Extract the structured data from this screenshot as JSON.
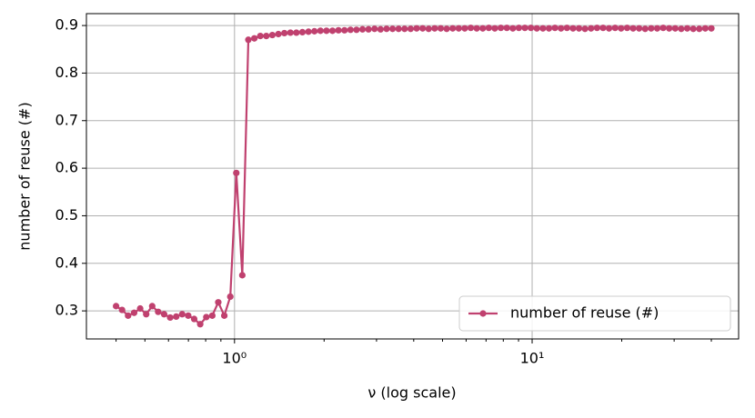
{
  "chart_data": {
    "type": "line",
    "xlabel": "ν (log scale)",
    "ylabel": "number of reuse (#)",
    "xscale": "log",
    "grid": true,
    "legend": "lower right",
    "xlim": [
      0.318,
      49.4
    ],
    "ylim": [
      0.241,
      0.925
    ],
    "xticks": [
      {
        "value": 1,
        "label": "10⁰"
      },
      {
        "value": 10,
        "label": "10¹"
      }
    ],
    "xminorticks": [
      0.4,
      0.5,
      0.6,
      0.7,
      0.8,
      0.9,
      2,
      3,
      4,
      5,
      6,
      7,
      8,
      9,
      20,
      30,
      40
    ],
    "yticks": [
      0.3,
      0.4,
      0.5,
      0.6,
      0.7,
      0.8,
      0.9
    ],
    "x": [
      0.4,
      0.419,
      0.439,
      0.46,
      0.482,
      0.505,
      0.529,
      0.554,
      0.58,
      0.608,
      0.637,
      0.667,
      0.699,
      0.732,
      0.767,
      0.804,
      0.842,
      0.882,
      0.924,
      0.968,
      1.014,
      1.062,
      1.113,
      1.166,
      1.221,
      1.279,
      1.34,
      1.404,
      1.471,
      1.541,
      1.614,
      1.691,
      1.772,
      1.856,
      1.944,
      2.037,
      2.134,
      2.235,
      2.342,
      2.453,
      2.57,
      2.692,
      2.82,
      2.955,
      3.095,
      3.243,
      3.397,
      3.559,
      3.728,
      3.906,
      4.092,
      4.287,
      4.491,
      4.705,
      4.929,
      5.163,
      5.409,
      5.667,
      5.937,
      6.219,
      6.515,
      6.826,
      7.151,
      7.491,
      7.848,
      8.222,
      8.613,
      9.023,
      9.453,
      9.903,
      10.37,
      10.87,
      11.39,
      11.93,
      12.5,
      13.09,
      13.72,
      14.37,
      15.05,
      15.77,
      16.52,
      17.31,
      18.13,
      19.0,
      19.9,
      20.85,
      21.84,
      22.88,
      23.97,
      25.11,
      26.31,
      27.56,
      28.87,
      30.25,
      31.69,
      33.2,
      34.78,
      36.44,
      38.17,
      40.0
    ],
    "series": [
      {
        "name": "number of reuse (#)",
        "color": "#c0416f",
        "values": [
          0.31,
          0.302,
          0.29,
          0.296,
          0.305,
          0.293,
          0.31,
          0.298,
          0.293,
          0.286,
          0.288,
          0.293,
          0.29,
          0.283,
          0.272,
          0.287,
          0.29,
          0.318,
          0.29,
          0.33,
          0.59,
          0.375,
          0.87,
          0.873,
          0.878,
          0.878,
          0.88,
          0.882,
          0.884,
          0.885,
          0.885,
          0.886,
          0.887,
          0.888,
          0.889,
          0.889,
          0.889,
          0.89,
          0.89,
          0.891,
          0.891,
          0.892,
          0.892,
          0.893,
          0.892,
          0.893,
          0.893,
          0.893,
          0.893,
          0.893,
          0.894,
          0.894,
          0.893,
          0.894,
          0.894,
          0.893,
          0.894,
          0.894,
          0.894,
          0.895,
          0.894,
          0.894,
          0.895,
          0.894,
          0.895,
          0.895,
          0.894,
          0.895,
          0.895,
          0.895,
          0.894,
          0.894,
          0.894,
          0.895,
          0.894,
          0.895,
          0.894,
          0.894,
          0.893,
          0.894,
          0.895,
          0.895,
          0.894,
          0.895,
          0.894,
          0.895,
          0.894,
          0.894,
          0.893,
          0.894,
          0.894,
          0.895,
          0.894,
          0.894,
          0.893,
          0.894,
          0.893,
          0.893,
          0.894,
          0.894
        ]
      }
    ]
  }
}
